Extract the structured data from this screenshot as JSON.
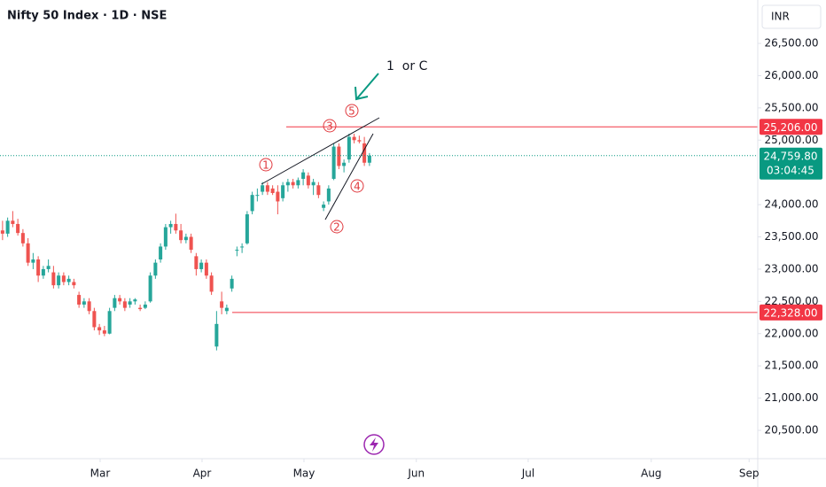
{
  "chart_data": {
    "type": "candlestick",
    "title": "Nifty 50 Index · 1D · NSE",
    "currency": "INR",
    "up_color": "#26a69a",
    "down_color": "#ef5350",
    "grid": false,
    "xlim": [
      0,
      148.7
    ],
    "ylim": [
      20061,
      27173
    ],
    "xticks": [
      {
        "value": 19.65,
        "label": "Mar"
      },
      {
        "value": 39.65,
        "label": "Apr"
      },
      {
        "value": 59.65,
        "label": "May"
      },
      {
        "value": 81.7,
        "label": "Jun"
      },
      {
        "value": 103.65,
        "label": "Jul"
      },
      {
        "value": 127.8,
        "label": "Aug"
      },
      {
        "value": 147,
        "label": "Sep"
      }
    ],
    "yticks": [
      {
        "value": 20500,
        "label": "20,500.00"
      },
      {
        "value": 21000,
        "label": "21,000.00"
      },
      {
        "value": 21500,
        "label": "21,500.00"
      },
      {
        "value": 22000,
        "label": "22,000.00"
      },
      {
        "value": 22500,
        "label": "22,500.00"
      },
      {
        "value": 23000,
        "label": "23,000.00"
      },
      {
        "value": 23500,
        "label": "23,500.00"
      },
      {
        "value": 24000,
        "label": "24,000.00"
      },
      {
        "value": 25000,
        "label": "25,000.00"
      },
      {
        "value": 25500,
        "label": "25,500.00"
      },
      {
        "value": 26000,
        "label": "26,000.00"
      },
      {
        "value": 26500,
        "label": "26,500.00"
      }
    ],
    "x": [
      0.5,
      1.5,
      2.5,
      3.5,
      4.5,
      5.5,
      6.5,
      7.5,
      8.5,
      9.5,
      10.5,
      11.5,
      12.5,
      13.5,
      14.5,
      15.5,
      16.5,
      17.5,
      18.5,
      19.5,
      20.5,
      21.5,
      22.5,
      23.5,
      24.5,
      25.5,
      26.5,
      27.5,
      28.5,
      29.5,
      30.5,
      31.5,
      32.5,
      33.5,
      34.5,
      35.5,
      36.5,
      37.5,
      38.5,
      39.5,
      40.5,
      41.5,
      42.5,
      43.5,
      44.5,
      45.5,
      46.5,
      47.5,
      48.5,
      49.5,
      50.5,
      51.5,
      52.5,
      53.5,
      54.5,
      55.5,
      56.5,
      57.5,
      58.5,
      59.5,
      60.5,
      61.5,
      62.5,
      63.5,
      64.5,
      65.5,
      66.5,
      67.5,
      68.5,
      69.5,
      70.5,
      71.5,
      72.5
    ],
    "candles": [
      [
        23600,
        23750,
        23450,
        23550
      ],
      [
        23550,
        23800,
        23500,
        23750
      ],
      [
        23750,
        23900,
        23650,
        23700
      ],
      [
        23700,
        23780,
        23520,
        23560
      ],
      [
        23560,
        23620,
        23350,
        23400
      ],
      [
        23400,
        23480,
        23050,
        23100
      ],
      [
        23100,
        23250,
        23000,
        23150
      ],
      [
        23150,
        23200,
        22800,
        22900
      ],
      [
        22900,
        23050,
        22850,
        23000
      ],
      [
        23000,
        23150,
        22950,
        23050
      ],
      [
        22950,
        23050,
        22700,
        22750
      ],
      [
        22750,
        22950,
        22700,
        22900
      ],
      [
        22900,
        22950,
        22750,
        22800
      ],
      [
        22800,
        22900,
        22750,
        22850
      ],
      [
        22800,
        22850,
        22700,
        22750
      ],
      [
        22600,
        22650,
        22400,
        22450
      ],
      [
        22450,
        22550,
        22400,
        22500
      ],
      [
        22500,
        22550,
        22300,
        22350
      ],
      [
        22350,
        22400,
        22050,
        22100
      ],
      [
        22100,
        22150,
        21980,
        22050
      ],
      [
        22050,
        22120,
        21960,
        22000
      ],
      [
        22000,
        22400,
        21990,
        22350
      ],
      [
        22400,
        22600,
        22350,
        22550
      ],
      [
        22550,
        22600,
        22450,
        22500
      ],
      [
        22500,
        22550,
        22350,
        22400
      ],
      [
        22450,
        22550,
        22400,
        22500
      ],
      [
        22500,
        22550,
        22450,
        22530
      ],
      [
        22400,
        22450,
        22350,
        22380
      ],
      [
        22400,
        22500,
        22380,
        22450
      ],
      [
        22500,
        22950,
        22480,
        22900
      ],
      [
        22900,
        23150,
        22850,
        23100
      ],
      [
        23150,
        23400,
        23100,
        23350
      ],
      [
        23350,
        23700,
        23300,
        23650
      ],
      [
        23650,
        23750,
        23550,
        23700
      ],
      [
        23700,
        23860,
        23550,
        23600
      ],
      [
        23600,
        23700,
        23400,
        23450
      ],
      [
        23450,
        23550,
        23400,
        23500
      ],
      [
        23500,
        23550,
        23250,
        23300
      ],
      [
        23200,
        23250,
        22900,
        23000
      ],
      [
        23000,
        23150,
        22950,
        23100
      ],
      [
        23100,
        23150,
        22850,
        22900
      ],
      [
        22900,
        22950,
        22600,
        22650
      ],
      [
        21800,
        22350,
        21740,
        22150
      ],
      [
        22500,
        22650,
        22300,
        22400
      ],
      [
        22350,
        22450,
        22300,
        22400
      ],
      [
        22700,
        22900,
        22650,
        22850
      ],
      [
        23300,
        23350,
        23200,
        23300
      ],
      [
        23350,
        23400,
        23250,
        23350
      ],
      [
        23400,
        23900,
        23380,
        23850
      ],
      [
        23900,
        24200,
        23850,
        24150
      ],
      [
        24150,
        24250,
        24050,
        24150
      ],
      [
        24200,
        24350,
        24150,
        24300
      ],
      [
        24300,
        24350,
        24150,
        24200
      ],
      [
        24250,
        24300,
        24150,
        24180
      ],
      [
        24200,
        24300,
        23850,
        24050
      ],
      [
        24100,
        24350,
        24050,
        24300
      ],
      [
        24300,
        24400,
        24200,
        24350
      ],
      [
        24350,
        24400,
        24250,
        24300
      ],
      [
        24300,
        24420,
        24250,
        24380
      ],
      [
        24400,
        24550,
        24300,
        24500
      ],
      [
        24450,
        24500,
        24250,
        24300
      ],
      [
        24300,
        24400,
        24150,
        24350
      ],
      [
        24300,
        24350,
        24100,
        24150
      ],
      [
        23950,
        24050,
        23900,
        24000
      ],
      [
        24050,
        24300,
        24000,
        24250
      ],
      [
        24400,
        24950,
        24380,
        24900
      ],
      [
        24900,
        24950,
        24550,
        24600
      ],
      [
        24600,
        24700,
        24500,
        24650
      ],
      [
        24700,
        25100,
        24650,
        25050
      ],
      [
        25050,
        25100,
        24950,
        25000
      ],
      [
        25000,
        25070,
        24950,
        24980
      ],
      [
        24950,
        25050,
        24600,
        24650
      ],
      [
        24650,
        24800,
        24600,
        24760
      ]
    ],
    "price_lines": [
      {
        "value": 25206,
        "label": "25,206.00",
        "color": "#f23645"
      },
      {
        "value": 22328,
        "label": "22,328.00",
        "color": "#f23645"
      }
    ],
    "last_price": {
      "value": 24759.8,
      "label": "24,759.80",
      "countdown": "03:04:45",
      "color": "#089981"
    },
    "annotations": [
      "1",
      "3",
      "5",
      "2",
      "4",
      "1  or C"
    ]
  }
}
